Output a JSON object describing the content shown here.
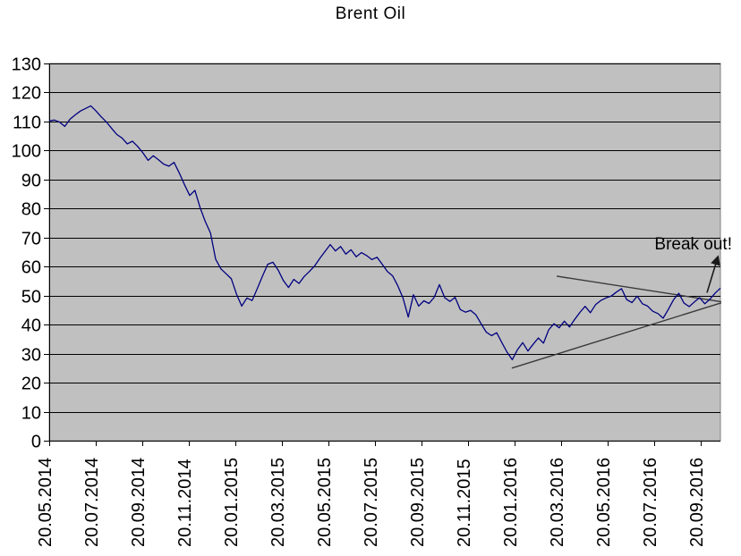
{
  "title": "Brent Oil",
  "chart_data": {
    "type": "line",
    "title": "Brent Oil",
    "xlabel": "",
    "ylabel": "",
    "ylim": [
      0,
      130
    ],
    "y_tick_step": 10,
    "y_ticks": [
      130,
      120,
      110,
      100,
      90,
      80,
      70,
      60,
      50,
      40,
      30,
      20,
      10,
      0
    ],
    "x_tick_labels": [
      "20.05.2014",
      "20.07.2014",
      "20.09.2014",
      "20.11.2014",
      "20.01.2015",
      "20.03.2015",
      "20.05.2015",
      "20.07.2015",
      "20.09.2015",
      "20.11.2015",
      "20.01.2016",
      "20.03.2016",
      "20.05.2016",
      "20.07.2016",
      "20.09.2016"
    ],
    "x_tick_interval_months": 2,
    "x_start": "20.05.2014",
    "x_step": "weekly",
    "grid": "horizontal",
    "legend": "none",
    "plot_bg": "#c0c0c0",
    "grid_color": "#000000",
    "border_color": "#808080",
    "line_color": "#000080",
    "trend_color": "#3a3a3a",
    "values": [
      110.2,
      110.5,
      109.8,
      108.3,
      110.8,
      112.3,
      113.6,
      114.5,
      115.4,
      113.6,
      111.6,
      109.8,
      107.6,
      105.5,
      104.3,
      102.3,
      103.2,
      101.4,
      99.2,
      96.6,
      98.2,
      96.8,
      95.3,
      94.6,
      95.9,
      92.3,
      88.2,
      84.5,
      86.3,
      80.3,
      75.5,
      71.6,
      62.5,
      59.2,
      57.5,
      55.8,
      50.5,
      46.4,
      49.2,
      48.3,
      52.5,
      56.8,
      60.8,
      61.5,
      58.8,
      55.2,
      52.8,
      55.6,
      54.2,
      56.6,
      58.3,
      60.2,
      62.8,
      65.2,
      67.6,
      65.4,
      66.9,
      64.3,
      65.8,
      63.4,
      64.8,
      63.8,
      62.4,
      63.2,
      60.8,
      58.3,
      56.8,
      53.4,
      49.2,
      42.6,
      50.3,
      46.4,
      48.2,
      47.3,
      49.4,
      53.8,
      49.3,
      48.0,
      49.4,
      45.2,
      44.3,
      44.9,
      43.4,
      40.3,
      37.4,
      36.2,
      37.2,
      33.8,
      30.5,
      27.9,
      31.4,
      33.8,
      30.9,
      33.2,
      35.4,
      33.6,
      38.2,
      40.3,
      38.9,
      41.2,
      39.2,
      41.8,
      44.2,
      46.3,
      44.1,
      46.9,
      48.3,
      49.2,
      49.8,
      51.2,
      52.4,
      48.6,
      47.6,
      49.8,
      47.2,
      46.4,
      44.6,
      43.8,
      42.2,
      45.3,
      48.6,
      50.8,
      47.4,
      46.2,
      47.8,
      49.3,
      47.2,
      48.8,
      50.9,
      52.6
    ],
    "annotations": {
      "breakout": {
        "text": "Break out!",
        "arrow": {
          "from": {
            "month": 28.27,
            "value": 51.0
          },
          "to": {
            "month": 28.82,
            "value": 63.5
          }
        }
      },
      "trendlines": [
        {
          "name": "rising-support",
          "from": {
            "month": 19.88,
            "value": 25.0
          },
          "to": {
            "month": 28.88,
            "value": 47.5
          }
        },
        {
          "name": "falling-resistance",
          "from": {
            "month": 21.81,
            "value": 56.7
          },
          "to": {
            "month": 28.88,
            "value": 47.9
          }
        }
      ]
    }
  }
}
